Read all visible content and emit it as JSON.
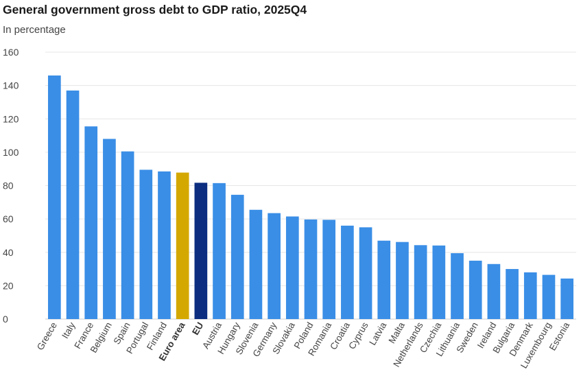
{
  "title": "General government gross debt to GDP ratio, 2025Q4",
  "subtitle": "In percentage",
  "chart_data": {
    "type": "bar",
    "title": "General government gross debt to GDP ratio, 2025Q4",
    "subtitle": "In percentage",
    "xlabel": "",
    "ylabel": "",
    "ylim": [
      0,
      160
    ],
    "yticks": [
      0,
      20,
      40,
      60,
      80,
      100,
      120,
      140,
      160
    ],
    "grid": true,
    "categories": [
      "Greece",
      "Italy",
      "France",
      "Belgium",
      "Spain",
      "Portugal",
      "Finland",
      "Euro area",
      "EU",
      "Austria",
      "Hungary",
      "Slovenia",
      "Germany",
      "Slovakia",
      "Poland",
      "Romania",
      "Croatia",
      "Cyprus",
      "Latvia",
      "Malta",
      "Netherlands",
      "Czechia",
      "Lithuania",
      "Sweden",
      "Ireland",
      "Bulgaria",
      "Denmark",
      "Luxembourg",
      "Estonia"
    ],
    "values": [
      146,
      137,
      115.5,
      108,
      100.5,
      89.5,
      88.5,
      87.8,
      81.7,
      81.5,
      74.5,
      65.5,
      63.5,
      61.5,
      59.7,
      59.5,
      56,
      55,
      47,
      46.2,
      44.3,
      44.1,
      39.5,
      35,
      33,
      30,
      28,
      26.5,
      24.3
    ],
    "bold_categories": [
      "Euro area",
      "EU"
    ],
    "colors": {
      "default": "#3a8ee6",
      "Euro area": "#d4a800",
      "EU": "#0c2d80",
      "grid": "#e6e6e6",
      "baseline": "#cccccc"
    }
  }
}
